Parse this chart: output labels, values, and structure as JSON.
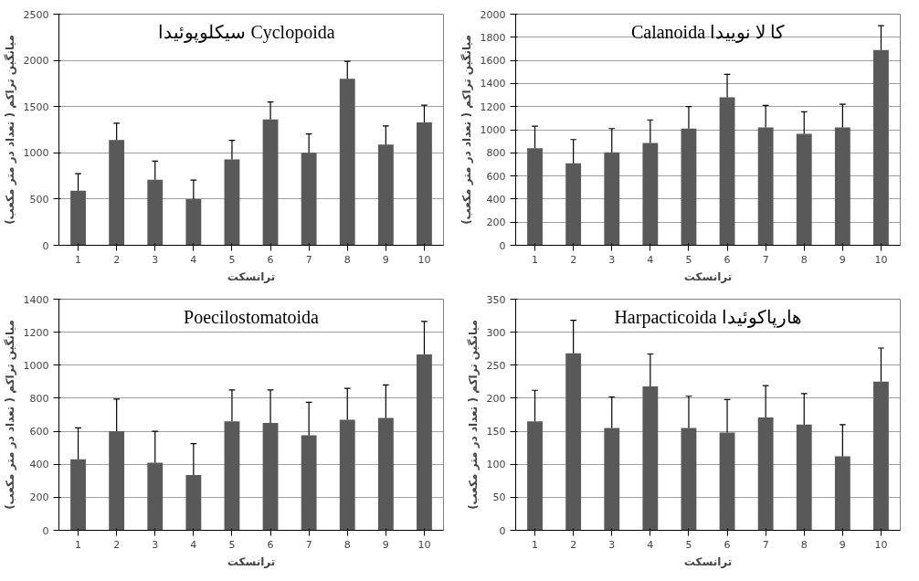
{
  "chart_data": [
    {
      "type": "bar",
      "title": "سیکلوپوئیدا   Cyclopoida",
      "xlabel": "ترانسکت",
      "ylabel": "میانگین تراکم ( تعداد در متر مکعب)",
      "categories": [
        "1",
        "2",
        "3",
        "4",
        "5",
        "6",
        "7",
        "8",
        "9",
        "10"
      ],
      "color": "#595959",
      "grid": "y",
      "ylim": [
        0,
        2500
      ],
      "yticks": [
        0,
        500,
        1000,
        1500,
        2000,
        2500
      ],
      "values": [
        590,
        1140,
        710,
        500,
        930,
        1360,
        1000,
        1800,
        1090,
        1330
      ],
      "errors": [
        [
          590,
          775
        ],
        [
          1140,
          1320
        ],
        [
          710,
          910
        ],
        [
          500,
          705
        ],
        [
          930,
          1135
        ],
        [
          1360,
          1550
        ],
        [
          1000,
          1205
        ],
        [
          1800,
          1990
        ],
        [
          1090,
          1290
        ],
        [
          1330,
          1515
        ]
      ]
    },
    {
      "type": "bar",
      "title": "Calanoida کا لا نوییدا",
      "xlabel": "ترانسکت",
      "ylabel": "میانگین تراکم ( تعداد در متر مکعب)",
      "categories": [
        "1",
        "2",
        "3",
        "4",
        "5",
        "6",
        "7",
        "8",
        "9",
        "10"
      ],
      "color": "#595959",
      "grid": "y",
      "ylim": [
        0,
        2000
      ],
      "yticks": [
        0,
        200,
        400,
        600,
        800,
        1000,
        1200,
        1400,
        1600,
        1800,
        2000
      ],
      "values": [
        840,
        710,
        805,
        885,
        1010,
        1280,
        1020,
        965,
        1020,
        1690
      ],
      "errors": [
        [
          840,
          1030
        ],
        [
          710,
          915
        ],
        [
          805,
          1010
        ],
        [
          885,
          1085
        ],
        [
          1010,
          1200
        ],
        [
          1280,
          1480
        ],
        [
          1020,
          1210
        ],
        [
          965,
          1155
        ],
        [
          1020,
          1220
        ],
        [
          1690,
          1900
        ]
      ]
    },
    {
      "type": "bar",
      "title": "Poecilostomatoida",
      "xlabel": "ترانسکت",
      "ylabel": "میانگین تراکم ( تعداد در متر مکعب)",
      "categories": [
        "1",
        "2",
        "3",
        "4",
        "5",
        "6",
        "7",
        "8",
        "9",
        "10"
      ],
      "color": "#595959",
      "grid": "y",
      "ylim": [
        0,
        1400
      ],
      "yticks": [
        0,
        200,
        400,
        600,
        800,
        1000,
        1200,
        1400
      ],
      "values": [
        430,
        600,
        410,
        335,
        660,
        650,
        575,
        670,
        680,
        1065
      ],
      "errors": [
        [
          430,
          620
        ],
        [
          600,
          795
        ],
        [
          410,
          600
        ],
        [
          335,
          525
        ],
        [
          660,
          850
        ],
        [
          650,
          850
        ],
        [
          575,
          775
        ],
        [
          670,
          860
        ],
        [
          680,
          880
        ],
        [
          1065,
          1265
        ]
      ]
    },
    {
      "type": "bar",
      "title": "Harpacticoida هارپاکوئیدا",
      "xlabel": "ترانسکت",
      "ylabel": "میانگین تراکم ( تعداد در متر مکعب)",
      "categories": [
        "1",
        "2",
        "3",
        "4",
        "5",
        "6",
        "7",
        "8",
        "9",
        "10"
      ],
      "color": "#595959",
      "grid": "y",
      "ylim": [
        0,
        350
      ],
      "yticks": [
        0,
        50,
        100,
        150,
        200,
        250,
        300,
        350
      ],
      "values": [
        165,
        268,
        155,
        218,
        155,
        148,
        171,
        160,
        112,
        225
      ],
      "errors": [
        [
          165,
          212
        ],
        [
          268,
          318
        ],
        [
          155,
          202
        ],
        [
          218,
          267
        ],
        [
          155,
          203
        ],
        [
          148,
          198
        ],
        [
          171,
          219
        ],
        [
          160,
          207
        ],
        [
          112,
          160
        ],
        [
          225,
          276
        ]
      ]
    }
  ]
}
